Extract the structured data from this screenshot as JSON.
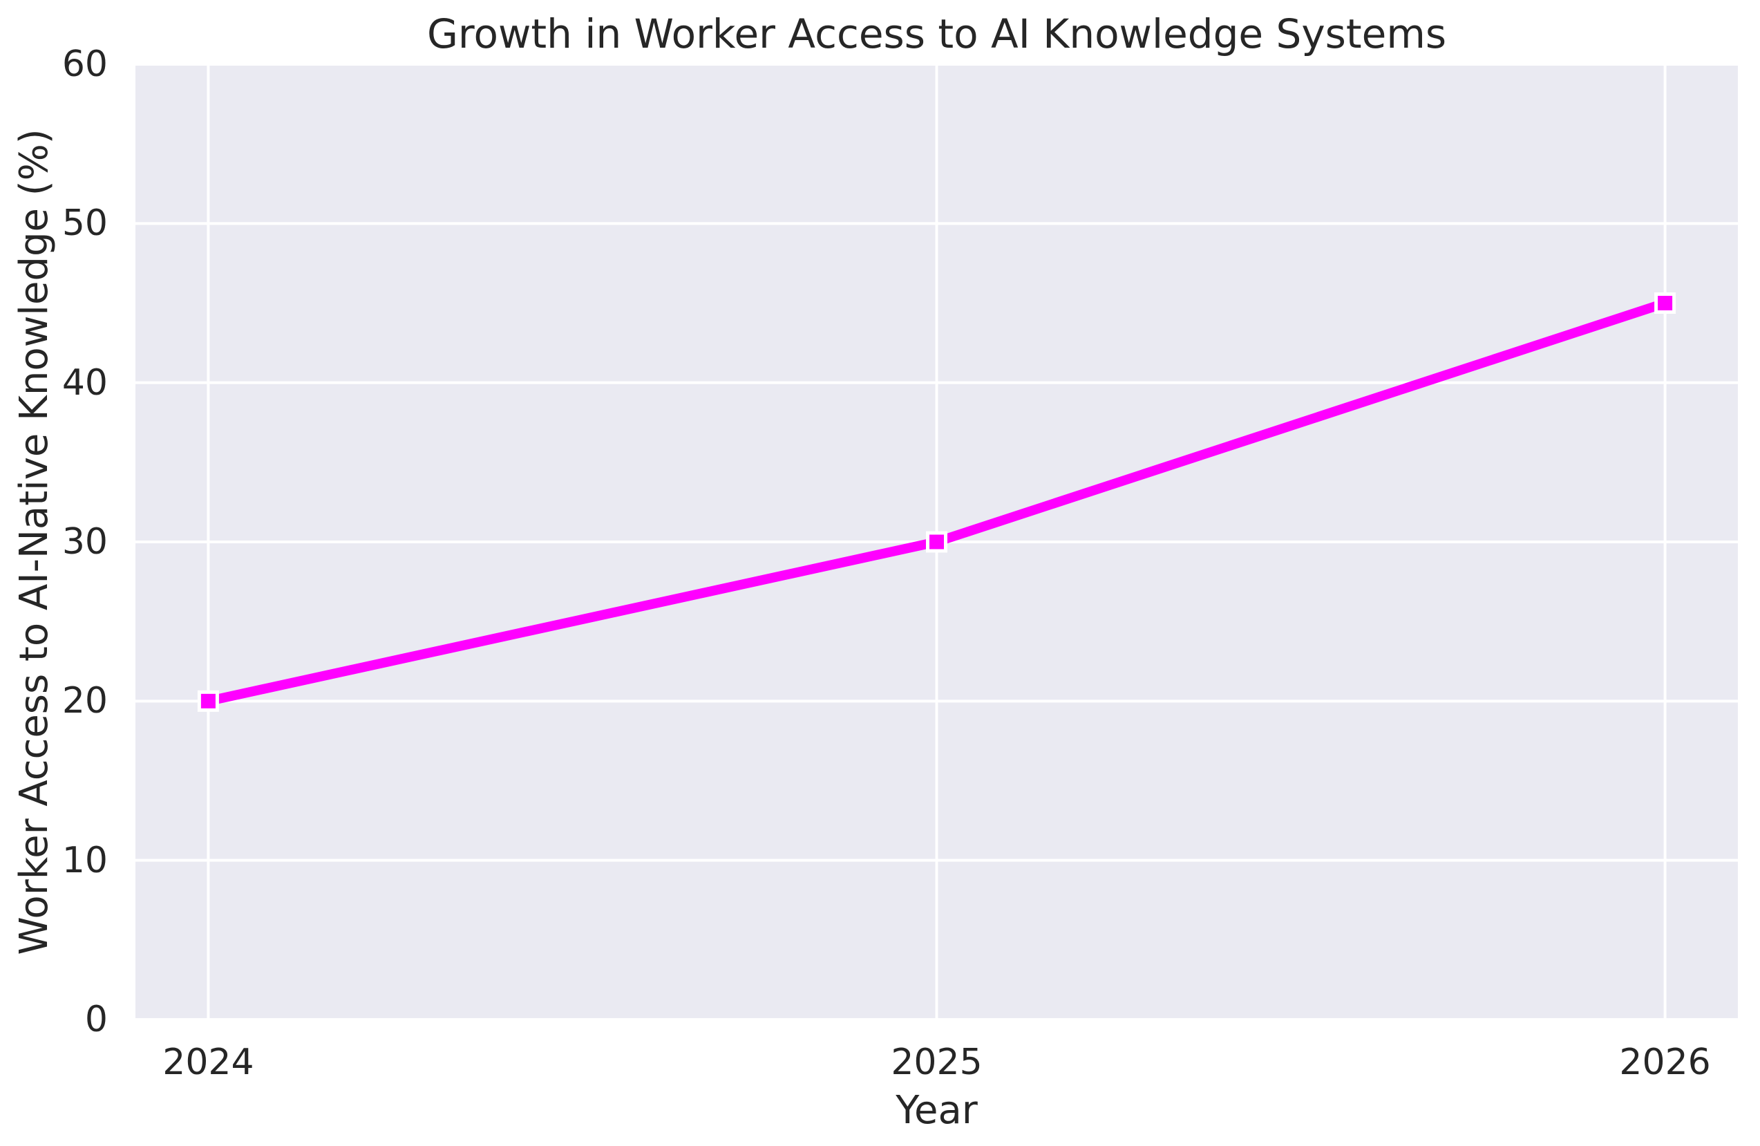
{
  "chart_data": {
    "type": "line",
    "title": "Growth in Worker Access to AI Knowledge Systems",
    "xlabel": "Year",
    "ylabel": "Worker Access to AI-Native Knowledge (%)",
    "x": [
      2024,
      2025,
      2026
    ],
    "series": [
      {
        "name": "Worker Access to AI-Native Knowledge",
        "values": [
          20,
          30,
          45
        ]
      }
    ],
    "xticks": [
      "2024",
      "2025",
      "2026"
    ],
    "xtick_values": [
      2024,
      2025,
      2026
    ],
    "yticks": [
      "0",
      "10",
      "20",
      "30",
      "40",
      "50",
      "60"
    ],
    "ytick_values": [
      0,
      10,
      20,
      30,
      40,
      50,
      60
    ],
    "xlim": [
      2023.9,
      2026.1
    ],
    "ylim": [
      0,
      60
    ],
    "grid": true,
    "legend": "none",
    "line_color": "#ff00ff",
    "marker": "square",
    "marker_color": "#ff00ff",
    "marker_edge_color": "#ffffff",
    "plot_background": "#eaeaf2",
    "grid_color": "#ffffff",
    "figure_background": "#ffffff",
    "text_color": "#262626"
  }
}
